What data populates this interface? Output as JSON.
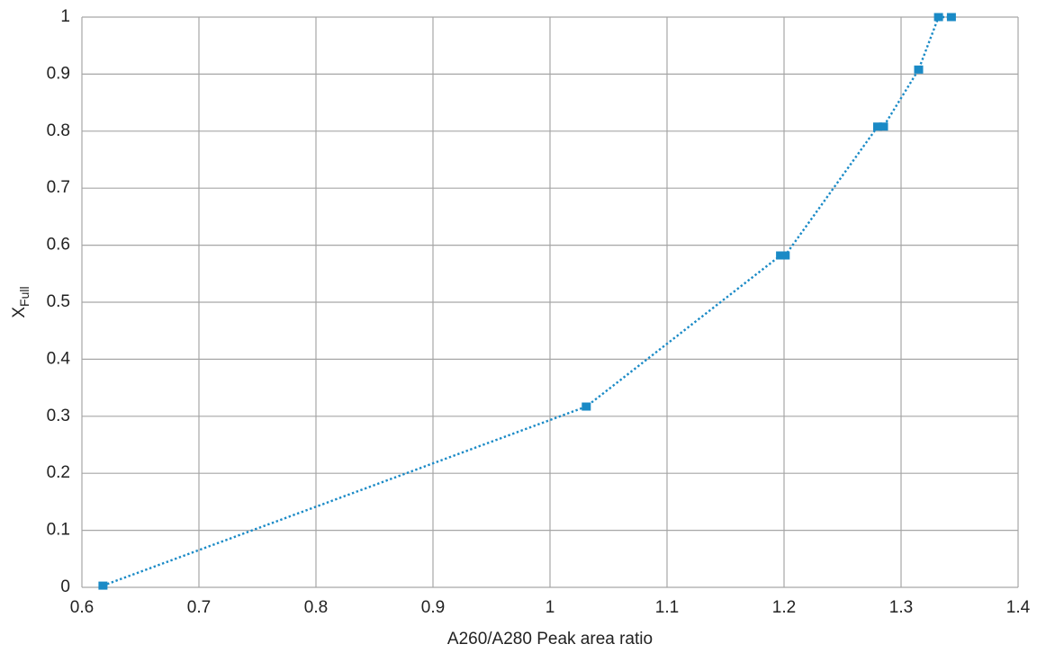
{
  "chart_data": {
    "type": "scatter",
    "xlabel": "A260/A280 Peak area ratio",
    "ylabel": {
      "main": "X",
      "sub": "Full"
    },
    "x": [
      0.618,
      1.031,
      1.197,
      1.201,
      1.28,
      1.285,
      1.315,
      1.332,
      1.343
    ],
    "y": [
      0.003,
      0.317,
      0.582,
      0.582,
      0.808,
      0.808,
      0.908,
      1.0,
      1.0
    ],
    "color": "#1a8ac6",
    "line": "dotted",
    "xlim": [
      0.6,
      1.4
    ],
    "xticks": [
      0.6,
      0.7,
      0.8,
      0.9,
      1,
      1.1,
      1.2,
      1.3,
      1.4
    ],
    "ylim": [
      0,
      1
    ],
    "yticks": [
      0,
      0.1,
      0.2,
      0.3,
      0.4,
      0.5,
      0.6,
      0.7,
      0.8,
      0.9,
      1
    ],
    "grid": true
  }
}
